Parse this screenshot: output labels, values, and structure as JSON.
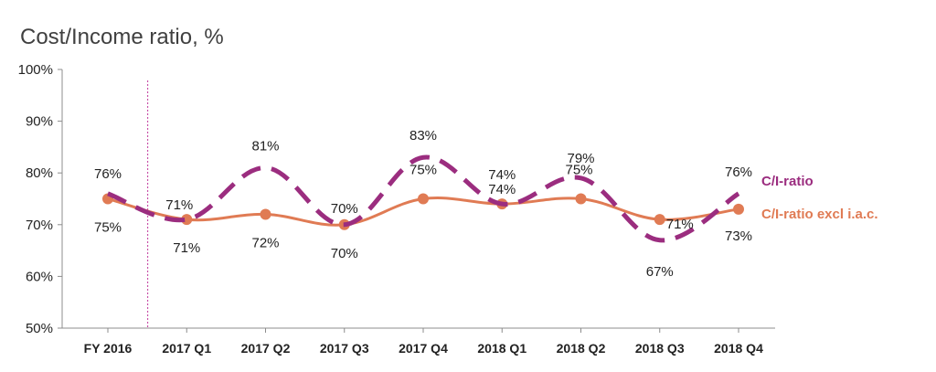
{
  "chart_data": {
    "type": "line",
    "title": "Cost/Income ratio, %",
    "categories": [
      "FY 2016",
      "2017 Q1",
      "2017 Q2",
      "2017 Q3",
      "2017 Q4",
      "2018 Q1",
      "2018 Q2",
      "2018 Q3",
      "2018 Q4"
    ],
    "ylim": [
      50,
      100
    ],
    "yticks": [
      "50%",
      "60%",
      "70%",
      "80%",
      "90%",
      "100%"
    ],
    "grid": false,
    "legend_placement": "right",
    "series": [
      {
        "name": "C/I-ratio",
        "values": [
          76,
          71,
          81,
          70,
          83,
          74,
          79,
          67,
          76
        ],
        "labels": [
          "76%",
          "71%",
          "81%",
          "70%",
          "83%",
          "74%",
          "79%",
          "67%",
          "76%"
        ],
        "color": "#9b2d7f",
        "style": "dashed"
      },
      {
        "name": "C/I-ratio excl i.a.c.",
        "values": [
          75,
          71,
          72,
          70,
          75,
          74,
          75,
          71,
          73
        ],
        "labels": [
          "75%",
          "71%",
          "72%",
          "70%",
          "75%",
          "74%",
          "75%",
          "71%",
          "73%"
        ],
        "color": "#e07b54",
        "style": "solid"
      }
    ],
    "annotations": {
      "vertical_divider_after_category": "FY 2016",
      "divider_color": "#c0389c"
    },
    "axis_color": "#8c8c8c"
  }
}
